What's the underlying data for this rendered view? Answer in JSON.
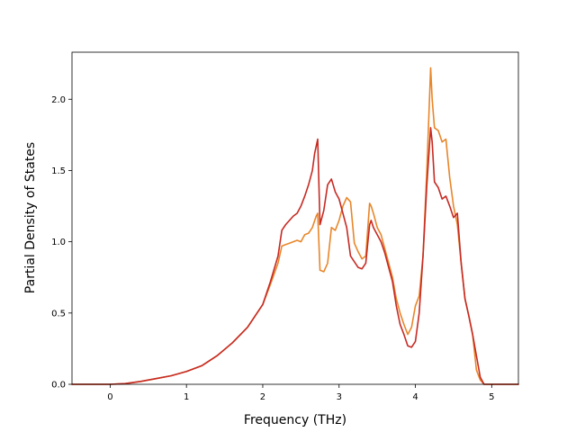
{
  "chart_data": {
    "type": "line",
    "title": "",
    "xlabel": "Frequency (THz)",
    "ylabel": "Partial Density of States",
    "xlim": [
      -0.5,
      5.35
    ],
    "ylim": [
      0.0,
      2.33
    ],
    "xticks": [
      0,
      1,
      2,
      3,
      4,
      5
    ],
    "xtick_labels": [
      "0",
      "1",
      "2",
      "3",
      "4",
      "5"
    ],
    "yticks": [
      0.0,
      0.5,
      1.0,
      1.5,
      2.0
    ],
    "ytick_labels": [
      "0.0",
      "0.5",
      "1.0",
      "1.5",
      "2.0"
    ],
    "grid": false,
    "legend": false,
    "series": [
      {
        "color": "#e8862a",
        "x": [
          -0.5,
          -0.3,
          0.0,
          0.2,
          0.4,
          0.6,
          0.8,
          1.0,
          1.2,
          1.4,
          1.6,
          1.8,
          2.0,
          2.1,
          2.2,
          2.25,
          2.3,
          2.35,
          2.4,
          2.45,
          2.5,
          2.55,
          2.6,
          2.65,
          2.7,
          2.72,
          2.75,
          2.8,
          2.85,
          2.9,
          2.95,
          3.0,
          3.05,
          3.1,
          3.15,
          3.2,
          3.25,
          3.3,
          3.35,
          3.4,
          3.42,
          3.45,
          3.5,
          3.55,
          3.6,
          3.65,
          3.7,
          3.75,
          3.8,
          3.85,
          3.9,
          3.95,
          4.0,
          4.05,
          4.1,
          4.15,
          4.2,
          4.22,
          4.25,
          4.3,
          4.35,
          4.4,
          4.45,
          4.5,
          4.55,
          4.6,
          4.65,
          4.7,
          4.75,
          4.8,
          4.85,
          4.9,
          5.0,
          5.2,
          5.35
        ],
        "y": [
          0.0,
          0.0,
          0.0,
          0.005,
          0.02,
          0.04,
          0.06,
          0.09,
          0.13,
          0.2,
          0.29,
          0.4,
          0.56,
          0.7,
          0.85,
          0.97,
          0.98,
          0.99,
          1.0,
          1.01,
          1.0,
          1.05,
          1.06,
          1.1,
          1.18,
          1.2,
          0.8,
          0.79,
          0.85,
          1.1,
          1.08,
          1.15,
          1.25,
          1.31,
          1.28,
          0.99,
          0.93,
          0.88,
          0.9,
          1.27,
          1.25,
          1.2,
          1.1,
          1.05,
          0.95,
          0.85,
          0.75,
          0.6,
          0.5,
          0.42,
          0.35,
          0.4,
          0.55,
          0.62,
          0.9,
          1.5,
          2.22,
          2.0,
          1.8,
          1.78,
          1.7,
          1.72,
          1.45,
          1.25,
          1.12,
          0.85,
          0.6,
          0.48,
          0.35,
          0.1,
          0.03,
          0.0,
          0.0,
          0.0,
          0.0
        ]
      },
      {
        "color": "#c62a23",
        "x": [
          -0.5,
          -0.3,
          0.0,
          0.2,
          0.4,
          0.6,
          0.8,
          1.0,
          1.2,
          1.4,
          1.6,
          1.8,
          2.0,
          2.1,
          2.2,
          2.25,
          2.3,
          2.35,
          2.4,
          2.45,
          2.5,
          2.55,
          2.6,
          2.65,
          2.68,
          2.72,
          2.75,
          2.8,
          2.85,
          2.9,
          2.95,
          3.0,
          3.05,
          3.1,
          3.15,
          3.2,
          3.25,
          3.3,
          3.35,
          3.4,
          3.42,
          3.45,
          3.5,
          3.55,
          3.6,
          3.65,
          3.7,
          3.75,
          3.8,
          3.85,
          3.9,
          3.95,
          4.0,
          4.05,
          4.1,
          4.15,
          4.2,
          4.22,
          4.25,
          4.3,
          4.35,
          4.4,
          4.45,
          4.5,
          4.55,
          4.6,
          4.65,
          4.7,
          4.75,
          4.8,
          4.85,
          4.9,
          5.0,
          5.2,
          5.35
        ],
        "y": [
          0.0,
          0.0,
          0.0,
          0.005,
          0.02,
          0.04,
          0.06,
          0.09,
          0.13,
          0.2,
          0.29,
          0.4,
          0.56,
          0.72,
          0.9,
          1.08,
          1.12,
          1.15,
          1.18,
          1.2,
          1.25,
          1.32,
          1.4,
          1.5,
          1.62,
          1.72,
          1.12,
          1.22,
          1.4,
          1.44,
          1.35,
          1.3,
          1.2,
          1.1,
          0.9,
          0.86,
          0.82,
          0.81,
          0.85,
          1.12,
          1.15,
          1.1,
          1.05,
          1.0,
          0.92,
          0.82,
          0.72,
          0.55,
          0.42,
          0.35,
          0.27,
          0.26,
          0.3,
          0.5,
          0.9,
          1.4,
          1.8,
          1.7,
          1.42,
          1.38,
          1.3,
          1.32,
          1.25,
          1.17,
          1.2,
          0.85,
          0.6,
          0.48,
          0.35,
          0.2,
          0.05,
          0.0,
          0.0,
          0.0,
          0.0
        ]
      }
    ]
  }
}
